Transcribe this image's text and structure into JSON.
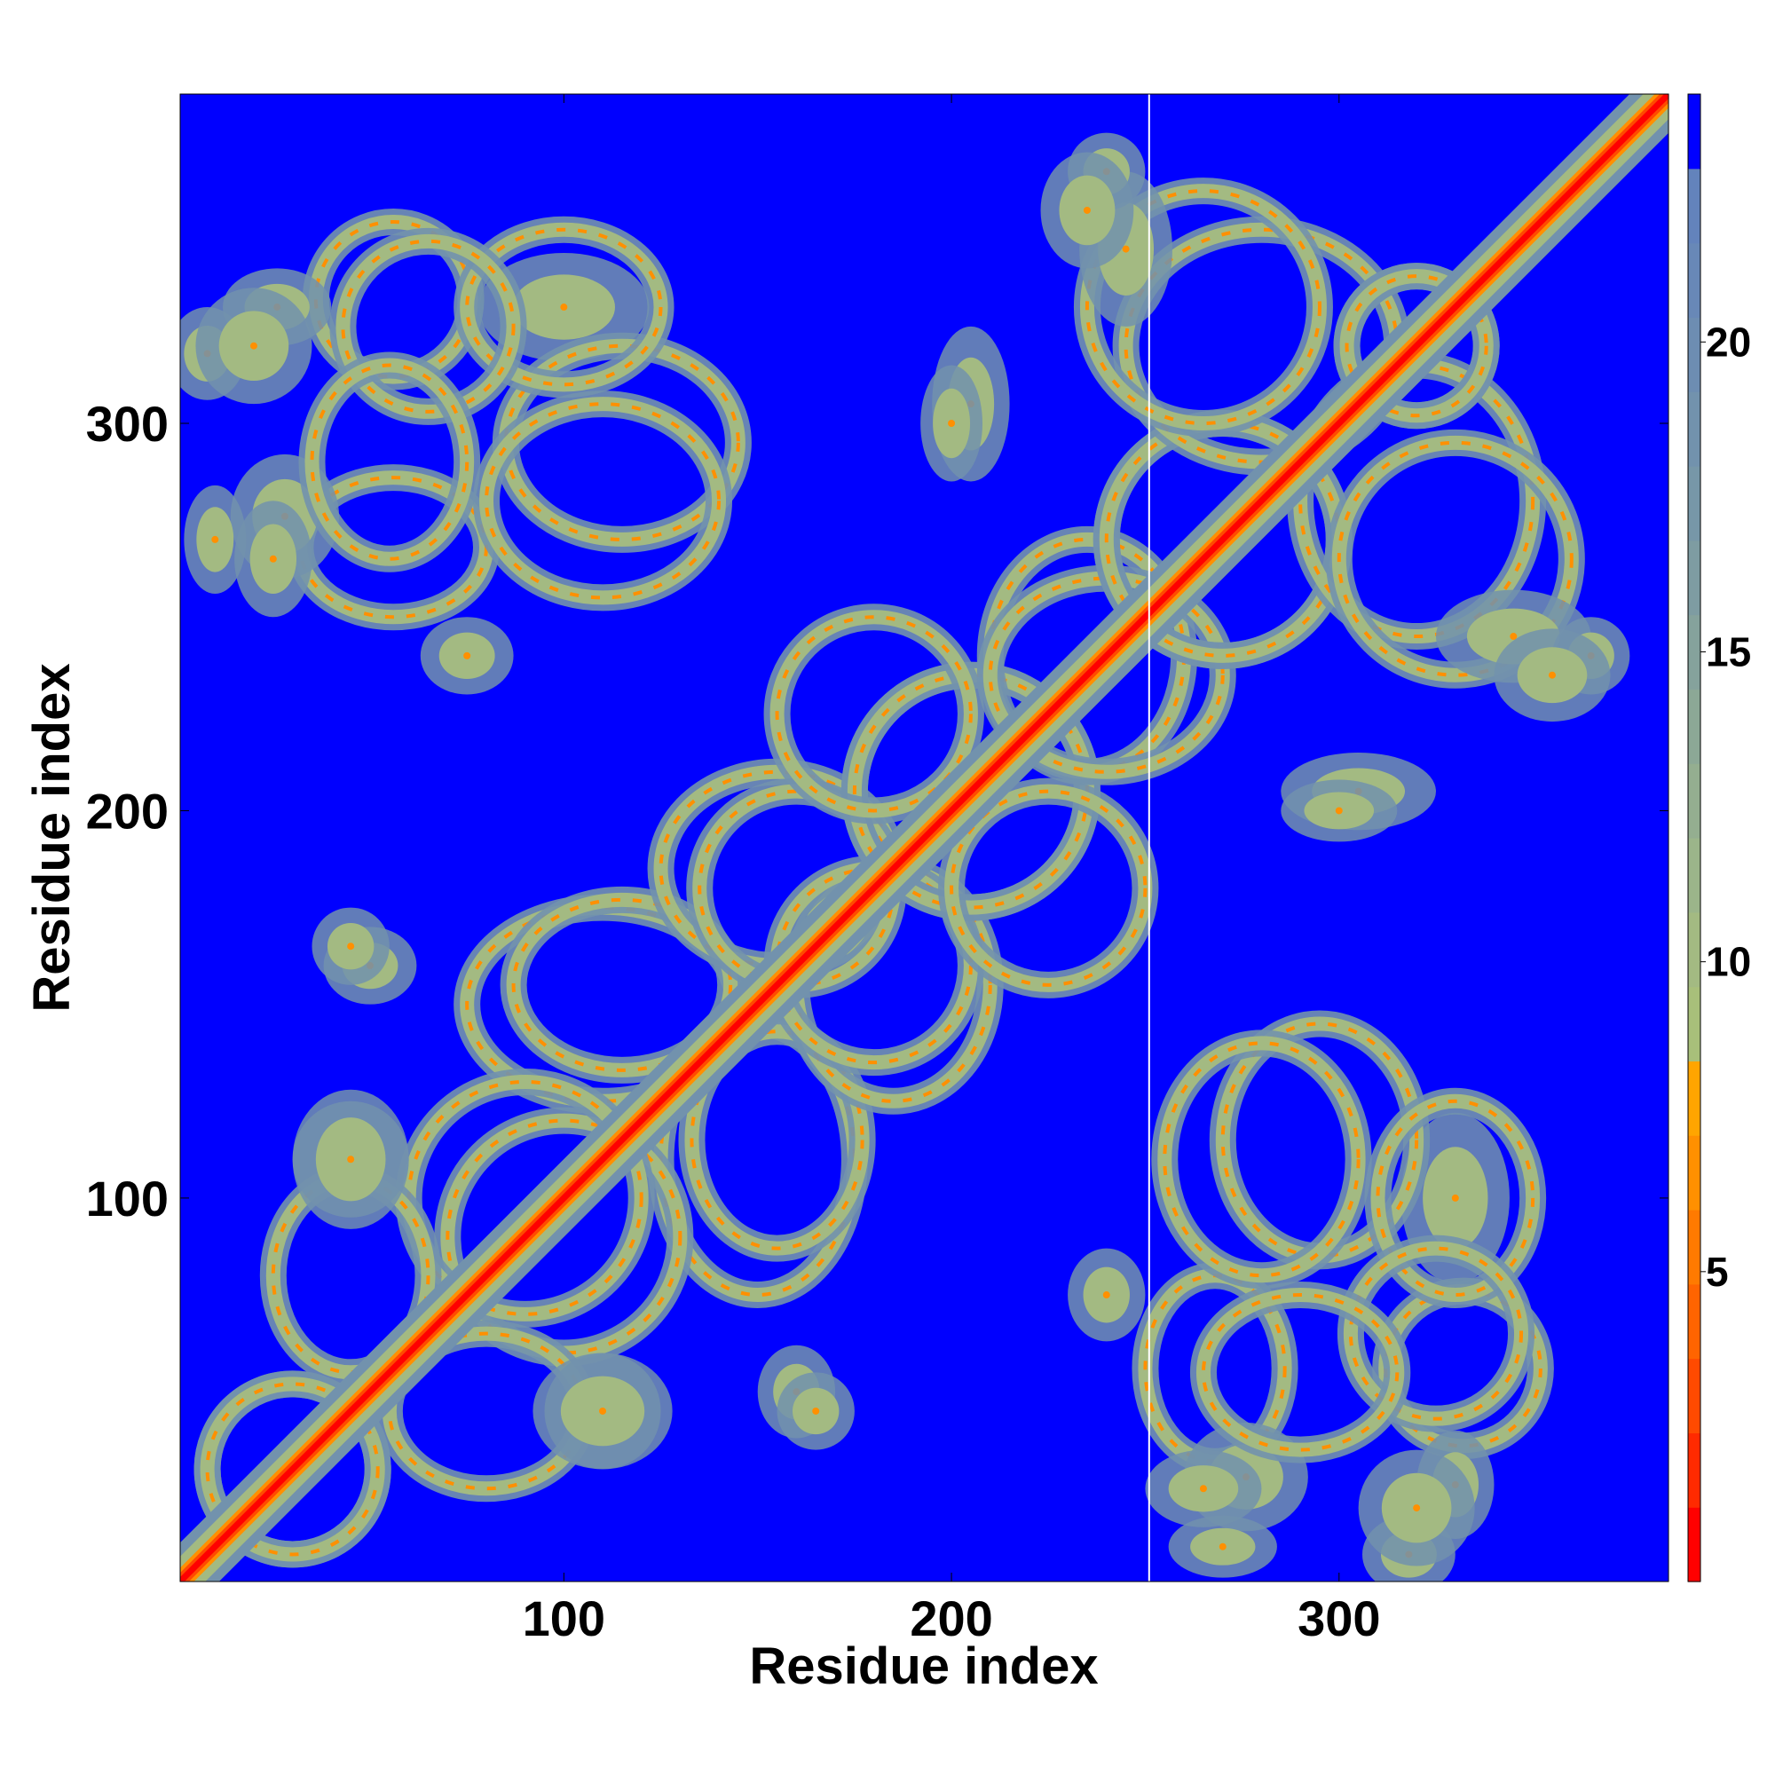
{
  "chart_data": {
    "type": "heatmap",
    "xlabel": "Residue index",
    "ylabel": "Residue index",
    "xlim": [
      1,
      385
    ],
    "ylim": [
      1,
      385
    ],
    "x_ticks": [
      100,
      200,
      300
    ],
    "y_ticks": [
      100,
      200,
      300
    ],
    "colorbar": {
      "range": [
        0,
        24
      ],
      "ticks": [
        5,
        10,
        15,
        20
      ],
      "levels": [
        {
          "from": 0,
          "to": 1.2,
          "color": "#ff0000"
        },
        {
          "from": 1.2,
          "to": 2.4,
          "color": "#ff2a00"
        },
        {
          "from": 2.4,
          "to": 3.6,
          "color": "#ff4a00"
        },
        {
          "from": 3.6,
          "to": 4.8,
          "color": "#ff6400"
        },
        {
          "from": 4.8,
          "to": 6.0,
          "color": "#ff7a00"
        },
        {
          "from": 6.0,
          "to": 7.2,
          "color": "#ff9000"
        },
        {
          "from": 7.2,
          "to": 8.4,
          "color": "#ffa500"
        },
        {
          "from": 8.4,
          "to": 9.6,
          "color": "#a8bf7a"
        },
        {
          "from": 9.6,
          "to": 10.8,
          "color": "#a3ba82"
        },
        {
          "from": 10.8,
          "to": 12.0,
          "color": "#9bb58a"
        },
        {
          "from": 12.0,
          "to": 13.2,
          "color": "#94ae90"
        },
        {
          "from": 13.2,
          "to": 14.4,
          "color": "#8ca896"
        },
        {
          "from": 14.4,
          "to": 15.6,
          "color": "#85a29c"
        },
        {
          "from": 15.6,
          "to": 16.8,
          "color": "#7e9ca2"
        },
        {
          "from": 16.8,
          "to": 18.0,
          "color": "#7797a8"
        },
        {
          "from": 18.0,
          "to": 19.2,
          "color": "#7292ad"
        },
        {
          "from": 19.2,
          "to": 20.4,
          "color": "#6d8db2"
        },
        {
          "from": 20.4,
          "to": 21.6,
          "color": "#6888b7"
        },
        {
          "from": 21.6,
          "to": 22.8,
          "color": "#6383bc"
        },
        {
          "from": 22.8,
          "to": 24.0,
          "color": "#0000ff"
        }
      ]
    },
    "background_color": "#0000ff",
    "separator_residue": 251,
    "contact_clusters": [
      {
        "x": 56,
        "y": 332,
        "rx": 20,
        "ry": 20,
        "ring": true
      },
      {
        "x": 26,
        "y": 330,
        "rx": 14,
        "ry": 10,
        "ring": false
      },
      {
        "x": 8,
        "y": 318,
        "rx": 10,
        "ry": 12,
        "ring": false
      },
      {
        "x": 100,
        "y": 330,
        "rx": 22,
        "ry": 14,
        "ring": false
      },
      {
        "x": 56,
        "y": 268,
        "rx": 24,
        "ry": 18,
        "ring": true
      },
      {
        "x": 28,
        "y": 276,
        "rx": 14,
        "ry": 16,
        "ring": false
      },
      {
        "x": 10,
        "y": 270,
        "rx": 8,
        "ry": 14,
        "ring": false
      },
      {
        "x": 115,
        "y": 295,
        "rx": 30,
        "ry": 25,
        "ring": true
      },
      {
        "x": 110,
        "y": 150,
        "rx": 35,
        "ry": 25,
        "ring": true
      },
      {
        "x": 100,
        "y": 90,
        "rx": 30,
        "ry": 30,
        "ring": true
      },
      {
        "x": 155,
        "y": 115,
        "rx": 22,
        "ry": 28,
        "ring": true
      },
      {
        "x": 155,
        "y": 185,
        "rx": 30,
        "ry": 25,
        "ring": true
      },
      {
        "x": 180,
        "y": 160,
        "rx": 25,
        "ry": 25,
        "ring": true
      },
      {
        "x": 205,
        "y": 205,
        "rx": 30,
        "ry": 30,
        "ring": true
      },
      {
        "x": 225,
        "y": 180,
        "rx": 25,
        "ry": 25,
        "ring": true
      },
      {
        "x": 235,
        "y": 240,
        "rx": 25,
        "ry": 30,
        "ring": true
      },
      {
        "x": 270,
        "y": 270,
        "rx": 30,
        "ry": 30,
        "ring": true
      },
      {
        "x": 280,
        "y": 320,
        "rx": 35,
        "ry": 30,
        "ring": true
      },
      {
        "x": 320,
        "y": 320,
        "rx": 18,
        "ry": 18,
        "ring": true
      },
      {
        "x": 330,
        "y": 265,
        "rx": 30,
        "ry": 30,
        "ring": true
      },
      {
        "x": 245,
        "y": 345,
        "rx": 12,
        "ry": 20,
        "ring": false
      },
      {
        "x": 280,
        "y": 110,
        "rx": 25,
        "ry": 30,
        "ring": true
      },
      {
        "x": 330,
        "y": 100,
        "rx": 20,
        "ry": 25,
        "ring": true
      },
      {
        "x": 325,
        "y": 65,
        "rx": 22,
        "ry": 22,
        "ring": true
      },
      {
        "x": 290,
        "y": 55,
        "rx": 25,
        "ry": 20,
        "ring": true
      },
      {
        "x": 45,
        "y": 80,
        "rx": 20,
        "ry": 25,
        "ring": true
      },
      {
        "x": 30,
        "y": 30,
        "rx": 22,
        "ry": 22,
        "ring": true
      },
      {
        "x": 45,
        "y": 110,
        "rx": 15,
        "ry": 15,
        "ring": false
      },
      {
        "x": 110,
        "y": 45,
        "rx": 18,
        "ry": 15,
        "ring": false
      },
      {
        "x": 265,
        "y": 25,
        "rx": 15,
        "ry": 10,
        "ring": false
      },
      {
        "x": 320,
        "y": 20,
        "rx": 15,
        "ry": 15,
        "ring": false
      },
      {
        "x": 305,
        "y": 205,
        "rx": 20,
        "ry": 10,
        "ring": false
      },
      {
        "x": 50,
        "y": 160,
        "rx": 12,
        "ry": 10,
        "ring": false
      },
      {
        "x": 240,
        "y": 75,
        "rx": 10,
        "ry": 12,
        "ring": false
      },
      {
        "x": 200,
        "y": 300,
        "rx": 8,
        "ry": 15,
        "ring": false
      },
      {
        "x": 240,
        "y": 365,
        "rx": 10,
        "ry": 10,
        "ring": false
      },
      {
        "x": 165,
        "y": 45,
        "rx": 10,
        "ry": 10,
        "ring": false
      },
      {
        "x": 355,
        "y": 235,
        "rx": 15,
        "ry": 12,
        "ring": false
      }
    ]
  }
}
